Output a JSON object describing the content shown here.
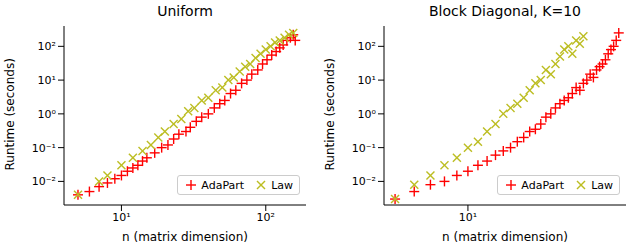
{
  "chart_data": [
    {
      "type": "scatter",
      "title": "Uniform",
      "x_label": "n (matrix dimension)",
      "y_label": "Runtime (seconds)",
      "log": true,
      "legend": "lower right",
      "xlim": [
        4,
        190
      ],
      "ylim": [
        0.002,
        400
      ],
      "xticks": [
        {
          "value": 10,
          "label": "10¹"
        },
        {
          "value": 100,
          "label": "10²"
        }
      ],
      "yticks": [
        {
          "value": 0.01,
          "label": "10⁻²"
        },
        {
          "value": 0.1,
          "label": "10⁻¹"
        },
        {
          "value": 1,
          "label": "10⁰"
        },
        {
          "value": 10,
          "label": "10¹"
        },
        {
          "value": 100,
          "label": "10²"
        }
      ],
      "series": [
        {
          "name": "AdaPart",
          "color": "#ff0000",
          "marker": "plus",
          "x": [
            5,
            6,
            7,
            8,
            9,
            10,
            11,
            12,
            13,
            14,
            15,
            17,
            19,
            21,
            23,
            25,
            28,
            30,
            33,
            36,
            40,
            44,
            48,
            52,
            57,
            62,
            68,
            74,
            80,
            88,
            95,
            102,
            110,
            118,
            125,
            132,
            140,
            148,
            155,
            160
          ],
          "values": [
            0.004,
            0.005,
            0.007,
            0.009,
            0.012,
            0.015,
            0.02,
            0.025,
            0.03,
            0.04,
            0.05,
            0.07,
            0.1,
            0.12,
            0.18,
            0.25,
            0.3,
            0.4,
            0.6,
            0.8,
            1.0,
            1.5,
            2,
            2.5,
            4,
            5,
            8,
            10,
            15,
            20,
            30,
            40,
            55,
            70,
            90,
            110,
            150,
            180,
            220,
            150
          ]
        },
        {
          "name": "Law",
          "color": "#bcbd22",
          "marker": "x",
          "x": [
            5,
            7,
            8,
            10,
            12,
            14,
            16,
            18,
            20,
            23,
            26,
            29,
            32,
            36,
            40,
            45,
            50,
            55,
            60,
            66,
            72,
            78,
            85,
            92,
            100,
            108,
            116,
            125,
            135,
            145,
            155
          ],
          "values": [
            0.004,
            0.01,
            0.015,
            0.03,
            0.05,
            0.08,
            0.12,
            0.2,
            0.3,
            0.5,
            0.7,
            1.2,
            1.5,
            2.5,
            3,
            5,
            6,
            10,
            12,
            18,
            25,
            30,
            45,
            60,
            80,
            100,
            130,
            150,
            180,
            220,
            250
          ]
        }
      ]
    },
    {
      "type": "scatter",
      "title": "Block Diagonal, K=10",
      "x_label": "n (matrix dimension)",
      "y_label": "Runtime (seconds)",
      "log": true,
      "legend": "lower right",
      "xlim": [
        4.5,
        45
      ],
      "ylim": [
        0.002,
        400
      ],
      "xticks": [
        {
          "value": 10,
          "label": "10¹"
        }
      ],
      "yticks": [
        {
          "value": 0.01,
          "label": "10⁻²"
        },
        {
          "value": 0.1,
          "label": "10⁻¹"
        },
        {
          "value": 1,
          "label": "10⁰"
        },
        {
          "value": 10,
          "label": "10¹"
        },
        {
          "value": 100,
          "label": "10²"
        }
      ],
      "series": [
        {
          "name": "AdaPart",
          "color": "#ff0000",
          "marker": "plus",
          "x": [
            5,
            6,
            7,
            8,
            9,
            10,
            11,
            12,
            13,
            14,
            15,
            16,
            17,
            18,
            19,
            20,
            21,
            22,
            23,
            24,
            25,
            26,
            27,
            28,
            29,
            30,
            31,
            32,
            33,
            34,
            35,
            36,
            37,
            38,
            39,
            40,
            41,
            42
          ],
          "values": [
            0.003,
            0.005,
            0.008,
            0.01,
            0.015,
            0.02,
            0.03,
            0.04,
            0.06,
            0.08,
            0.1,
            0.15,
            0.2,
            0.3,
            0.35,
            0.5,
            0.8,
            1,
            1.5,
            2,
            2.5,
            3,
            4,
            6,
            5,
            8,
            10,
            15,
            12,
            20,
            25,
            30,
            40,
            60,
            80,
            100,
            150,
            250
          ]
        },
        {
          "name": "Law",
          "color": "#bcbd22",
          "marker": "x",
          "x": [
            5,
            6,
            7,
            8,
            9,
            10,
            11,
            12,
            13,
            14,
            15,
            16,
            17,
            18,
            19,
            20,
            21,
            22,
            23,
            24,
            25,
            26,
            27,
            28,
            29,
            30
          ],
          "values": [
            0.003,
            0.008,
            0.015,
            0.03,
            0.05,
            0.1,
            0.15,
            0.3,
            0.5,
            1,
            1.5,
            2,
            3,
            5,
            8,
            10,
            20,
            15,
            30,
            50,
            80,
            100,
            60,
            150,
            120,
            200
          ]
        }
      ]
    }
  ]
}
